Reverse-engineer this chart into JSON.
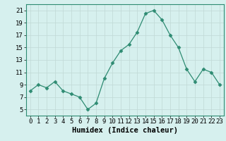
{
  "x": [
    0,
    1,
    2,
    3,
    4,
    5,
    6,
    7,
    8,
    9,
    10,
    11,
    12,
    13,
    14,
    15,
    16,
    17,
    18,
    19,
    20,
    21,
    22,
    23
  ],
  "y": [
    8.0,
    9.0,
    8.5,
    9.5,
    8.0,
    7.5,
    7.0,
    5.0,
    6.0,
    10.0,
    12.5,
    14.5,
    15.5,
    17.5,
    20.5,
    21.0,
    19.5,
    17.0,
    15.0,
    11.5,
    9.5,
    11.5,
    11.0,
    9.0
  ],
  "line_color": "#2e8b72",
  "marker": "D",
  "marker_size": 2.5,
  "bg_color": "#d6f0ee",
  "grid_color": "#c0d8d5",
  "xlabel": "Humidex (Indice chaleur)",
  "ylim": [
    4,
    22
  ],
  "xlim": [
    -0.5,
    23.5
  ],
  "yticks": [
    5,
    7,
    9,
    11,
    13,
    15,
    17,
    19,
    21
  ],
  "xticks": [
    0,
    1,
    2,
    3,
    4,
    5,
    6,
    7,
    8,
    9,
    10,
    11,
    12,
    13,
    14,
    15,
    16,
    17,
    18,
    19,
    20,
    21,
    22,
    23
  ],
  "xlabel_fontsize": 7.5,
  "tick_fontsize": 6.5
}
